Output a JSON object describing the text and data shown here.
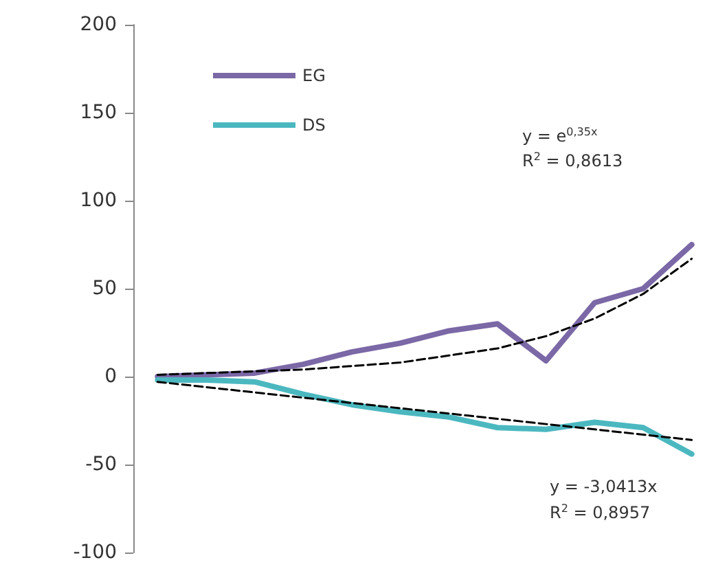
{
  "chart_data": {
    "type": "line",
    "categories": [
      null,
      null,
      null,
      null,
      null,
      null,
      null,
      null,
      null,
      null,
      null,
      null
    ],
    "series": [
      {
        "name": "EG",
        "color": "#7b68a6",
        "values": [
          0,
          1,
          2,
          7,
          14,
          19,
          26,
          30,
          9,
          42,
          50,
          75
        ]
      },
      {
        "name": "DS",
        "color": "#4bb8c0",
        "values": [
          -2,
          -2,
          -3,
          -10,
          -16,
          -20,
          -23,
          -29,
          -30,
          -26,
          -29,
          -44
        ]
      },
      {
        "color": "#000000",
        "line_style": "dashed",
        "values": [
          1,
          2,
          3,
          4,
          6,
          8,
          12,
          16,
          23,
          33,
          47,
          67
        ]
      },
      {
        "color": "#000000",
        "line_style": "dashed",
        "values": [
          -3,
          -6,
          -9,
          -12,
          -15,
          -18,
          -21,
          -24,
          -27,
          -30,
          -33,
          -36
        ]
      }
    ],
    "ylim": [
      -100,
      200
    ],
    "yticks": [
      -100,
      -50,
      0,
      50,
      100,
      150,
      200
    ],
    "annotations": [
      "y = e$^{0,35x}$",
      "R$^{2}$ = 0,8613",
      "y = -3,0413x",
      "R$^{2}$ = 0,8957"
    ],
    "legend": "top left",
    "grid": false,
    "marker": "none",
    "line_style": "solid",
    "tick_labels": "y"
  }
}
